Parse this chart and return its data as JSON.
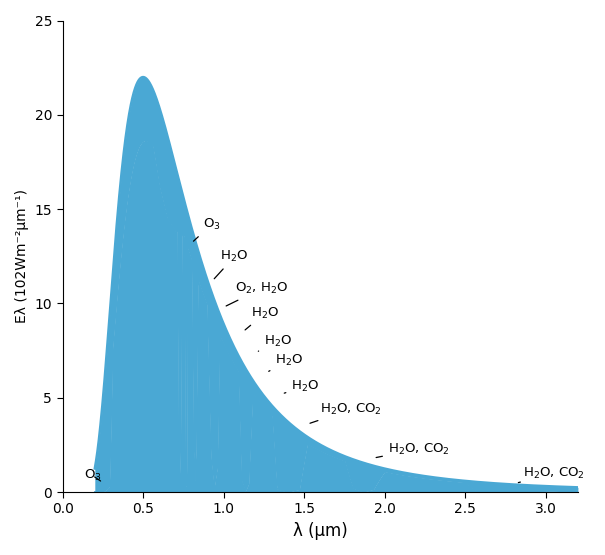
{
  "xlabel": "λ (μm)",
  "ylabel": "Eλ (102Wm⁻²μm⁻¹)",
  "xlim": [
    0,
    3.2
  ],
  "ylim": [
    0,
    25
  ],
  "xticks": [
    0.0,
    0.5,
    1.0,
    1.5,
    2.0,
    2.5,
    3.0
  ],
  "yticks": [
    0,
    5,
    10,
    15,
    20,
    25
  ],
  "curve_color": "#4aa8d4"
}
